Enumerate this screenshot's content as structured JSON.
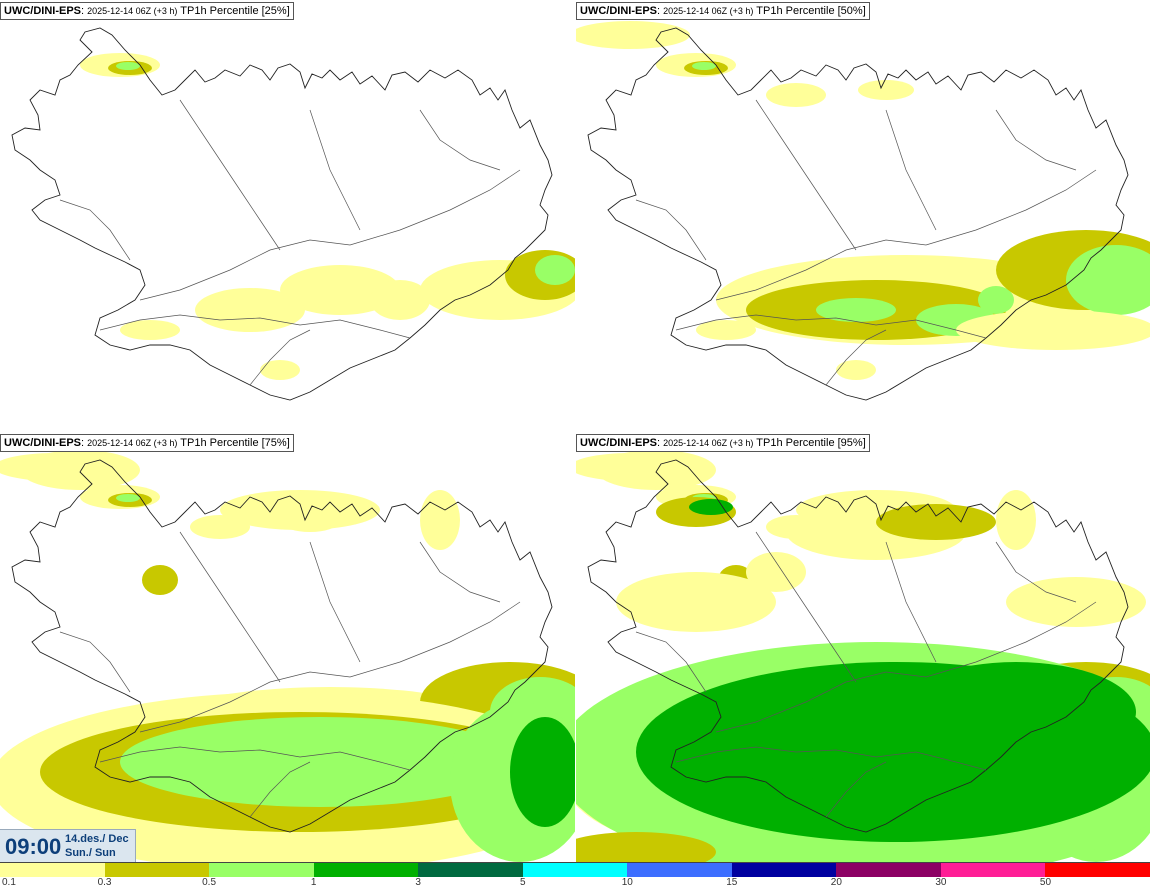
{
  "panels": [
    {
      "model": "UWC/DINI-EPS",
      "run": "2025-12-14 06Z (+3 h)",
      "field": "TP1h Percentile [25%]",
      "level": 0
    },
    {
      "model": "UWC/DINI-EPS",
      "run": "2025-12-14 06Z (+3 h)",
      "field": "TP1h Percentile [50%]",
      "level": 1
    },
    {
      "model": "UWC/DINI-EPS",
      "run": "2025-12-14 06Z (+3 h)",
      "field": "TP1h Percentile [75%]",
      "level": 2
    },
    {
      "model": "UWC/DINI-EPS",
      "run": "2025-12-14 06Z (+3 h)",
      "field": "TP1h Percentile [95%]",
      "level": 3
    }
  ],
  "valid_time": {
    "time": "09:00",
    "date_line1": "14.des./ Dec",
    "date_line2": "Sun./ Sun"
  },
  "colorbar": {
    "ticks": [
      "0.1",
      "0.3",
      "0.5",
      "1",
      "3",
      "5",
      "10",
      "15",
      "20",
      "30",
      "50"
    ],
    "colors": [
      "#ffff99",
      "#c8c800",
      "#99ff66",
      "#00b000",
      "#006a40",
      "#00ffff",
      "#3c6eff",
      "#0000a0",
      "#8c0064",
      "#ff1e96",
      "#ff0000"
    ]
  }
}
